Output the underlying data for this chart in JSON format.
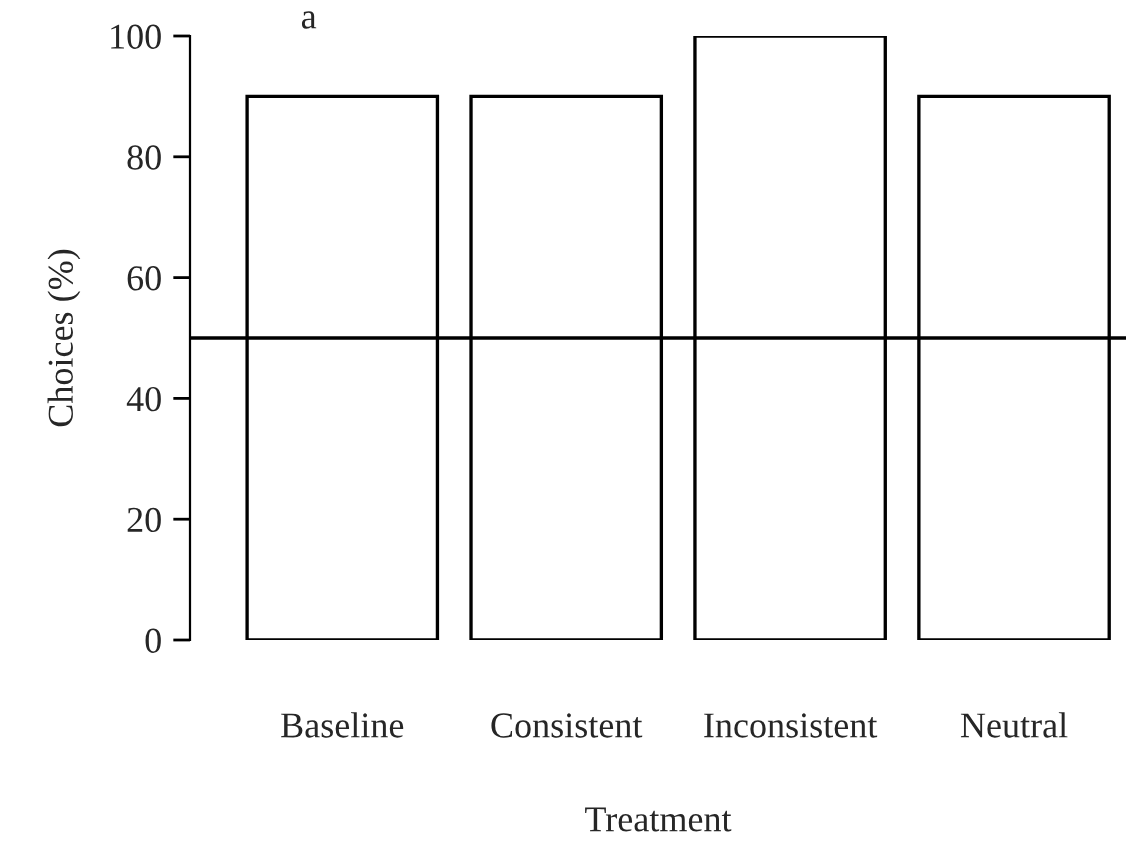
{
  "chart_data": {
    "type": "bar",
    "xlabel": "Treatment",
    "ylabel": "Choices (%)",
    "categories": [
      "Baseline",
      "Consistent",
      "Inconsistent",
      "Neutral"
    ],
    "values": [
      90,
      90,
      100,
      90
    ],
    "color": "#ffffff",
    "ylim": [
      0,
      100
    ],
    "yticks": [
      0,
      20,
      40,
      60,
      80,
      100
    ],
    "grid": false,
    "ref_lines": [
      {
        "axis": "y",
        "value": 50,
        "color": "#000000"
      }
    ],
    "annotations": [
      "a"
    ]
  }
}
